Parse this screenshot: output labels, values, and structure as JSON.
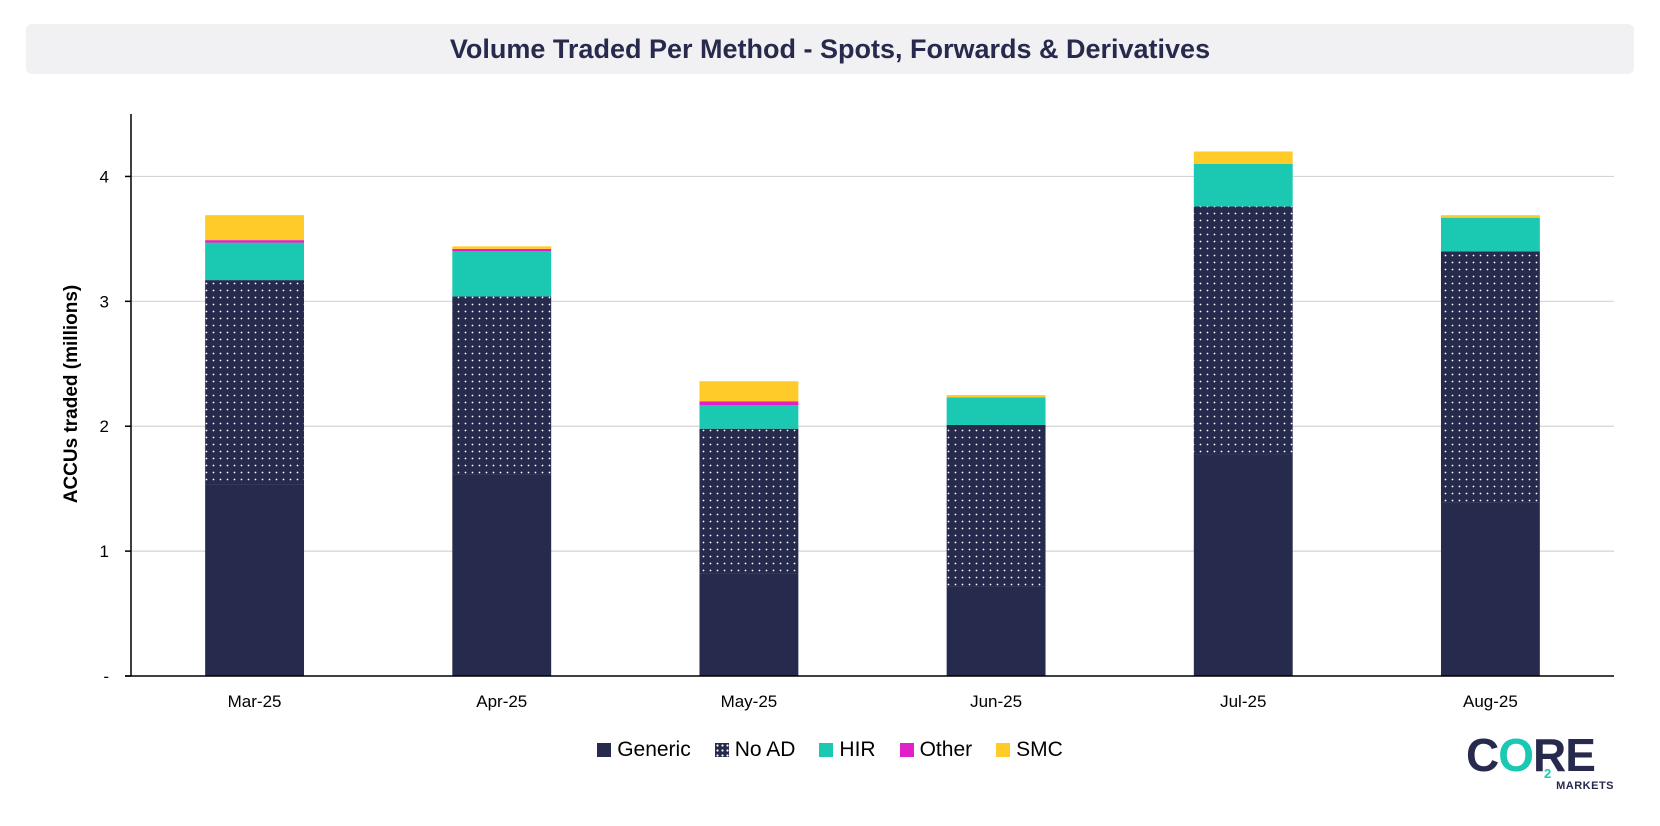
{
  "chart_data": {
    "type": "bar",
    "stacked": true,
    "title": "Volume Traded Per Method - Spots, Forwards & Derivatives",
    "xlabel": "",
    "ylabel": "ACCUs traded (millions)",
    "ylim": [
      0,
      4.5
    ],
    "yticks": [
      0,
      1,
      2,
      3,
      4
    ],
    "ytick_labels": [
      "-",
      "1",
      "2",
      "3",
      "4"
    ],
    "grid": true,
    "legend_position": "bottom",
    "categories": [
      "Mar-25",
      "Apr-25",
      "May-25",
      "Jun-25",
      "Jul-25",
      "Aug-25"
    ],
    "series": [
      {
        "name": "Generic",
        "color": "#262a4c",
        "pattern": "solid",
        "values": [
          1.53,
          1.61,
          0.82,
          0.72,
          1.77,
          1.39
        ]
      },
      {
        "name": "No AD",
        "color": "#262a4c",
        "pattern": "dots",
        "values": [
          1.64,
          1.43,
          1.16,
          1.29,
          1.99,
          2.01
        ]
      },
      {
        "name": "HIR",
        "color": "#1bc9b2",
        "pattern": "solid",
        "values": [
          0.3,
          0.36,
          0.19,
          0.22,
          0.34,
          0.27
        ]
      },
      {
        "name": "Other",
        "color": "#e020c8",
        "pattern": "solid",
        "values": [
          0.02,
          0.02,
          0.03,
          0.0,
          0.0,
          0.0
        ]
      },
      {
        "name": "SMC",
        "color": "#ffcb29",
        "pattern": "solid",
        "values": [
          0.2,
          0.02,
          0.16,
          0.02,
          0.1,
          0.02
        ]
      }
    ]
  },
  "logo": {
    "word": "CORE",
    "subscript": "2",
    "sub_text": "MARKETS"
  }
}
